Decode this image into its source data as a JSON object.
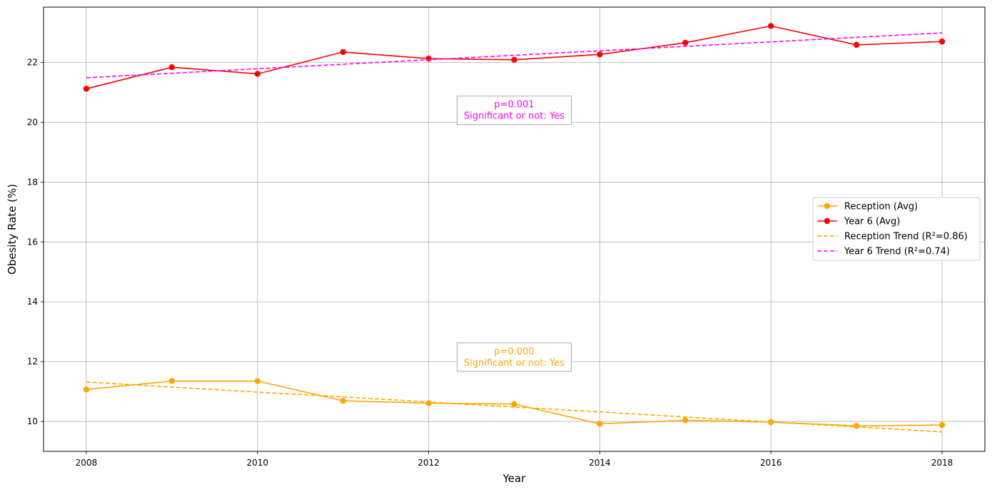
{
  "chart_data": {
    "type": "line",
    "xlabel": "Year",
    "ylabel": "Obesity Rate (%)",
    "xlim": [
      2007.5,
      2018.5
    ],
    "ylim": [
      9.0,
      23.85
    ],
    "xticks": [
      2008,
      2010,
      2012,
      2014,
      2016,
      2018
    ],
    "yticks": [
      10,
      12,
      14,
      16,
      18,
      20,
      22
    ],
    "grid": true,
    "legend_position": "center-right",
    "x": [
      2008,
      2009,
      2010,
      2011,
      2012,
      2013,
      2014,
      2015,
      2016,
      2017,
      2018
    ],
    "series": [
      {
        "name": "Reception (Avg)",
        "style": "solid-marker",
        "color": "#ffa500",
        "values": [
          11.07,
          11.35,
          11.35,
          10.69,
          10.61,
          10.58,
          9.92,
          10.04,
          9.98,
          9.85,
          9.88
        ]
      },
      {
        "name": "Year 6 (Avg)",
        "style": "solid-marker",
        "color": "#ff0000",
        "values": [
          21.12,
          21.84,
          21.62,
          22.35,
          22.13,
          22.09,
          22.27,
          22.66,
          23.22,
          22.59,
          22.7
        ]
      },
      {
        "name": "Reception Trend (R²=0.86)",
        "style": "dashed",
        "color": "#ffa500",
        "values": [
          11.32,
          11.15,
          10.98,
          10.82,
          10.65,
          10.48,
          10.32,
          10.15,
          9.98,
          9.82,
          9.65
        ]
      },
      {
        "name": "Year 6 Trend (R²=0.74)",
        "style": "dashed",
        "color": "#ff00ff",
        "values": [
          21.49,
          21.64,
          21.79,
          21.94,
          22.09,
          22.24,
          22.39,
          22.54,
          22.69,
          22.84,
          22.99
        ]
      }
    ],
    "annotations": [
      {
        "x": 2013,
        "y": 20.4,
        "lines": [
          "p=0.001",
          "Significant or not: Yes"
        ],
        "color": "#ff00ff"
      },
      {
        "x": 2013,
        "y": 12.15,
        "lines": [
          "p=0.000",
          "Significant or not: Yes"
        ],
        "color": "#ffa500"
      }
    ]
  }
}
